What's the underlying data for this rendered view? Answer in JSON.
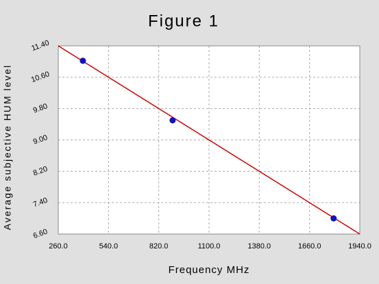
{
  "chart_data": {
    "type": "scatter",
    "title": "Figure 1",
    "x_label": "Frequency MHz",
    "y_label": "Average subjective HUM level",
    "xlim": [
      260,
      1940
    ],
    "xticks": [
      {
        "value": 260,
        "label": "260.0"
      },
      {
        "value": 540,
        "label": "540.0"
      },
      {
        "value": 820,
        "label": "820.0"
      },
      {
        "value": 1100,
        "label": "1100.0"
      },
      {
        "value": 1380,
        "label": "1380.0"
      },
      {
        "value": 1660,
        "label": "1660.0"
      },
      {
        "value": 1940,
        "label": "1940.0"
      }
    ],
    "ylim": [
      6.6,
      11.4
    ],
    "yticks": [
      {
        "value": 6.6,
        "label": "6.60"
      },
      {
        "value": 7.4,
        "label": "7.40"
      },
      {
        "value": 8.2,
        "label": "8.20"
      },
      {
        "value": 9,
        "label": "9.00"
      },
      {
        "value": 9.8,
        "label": "9.80"
      },
      {
        "value": 10.6,
        "label": "10.60"
      },
      {
        "value": 11.4,
        "label": "11.40"
      }
    ],
    "grid": true,
    "series": [
      {
        "style": "markers",
        "color": "#1010c8",
        "x": [
          397,
          897,
          1794
        ],
        "values": [
          11.02,
          9.5,
          7.0
        ]
      },
      {
        "style": "line",
        "color": "#d00000",
        "x": [
          260,
          1940
        ],
        "values": [
          11.4,
          6.6
        ]
      }
    ]
  }
}
